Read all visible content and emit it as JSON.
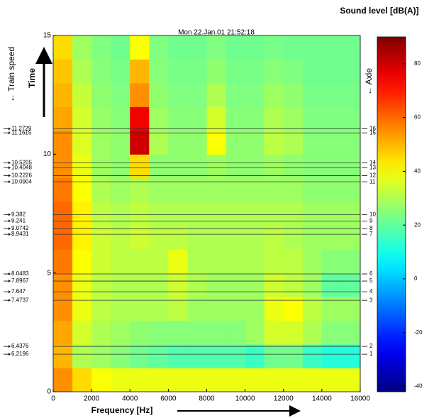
{
  "chart_data": {
    "type": "heatmap",
    "title": "Mon 22.Jan.01  21:52:18",
    "xlabel": "Frequency [Hz]",
    "ylabel": "Time",
    "side_label": "← Train speed",
    "axle_label": "← Axle",
    "colorbar_label": "Sound level [dB(A)]",
    "colormap": "jet",
    "xlim": [
      0,
      16000
    ],
    "xticks": [
      0,
      2000,
      4000,
      6000,
      8000,
      10000,
      12000,
      14000,
      16000
    ],
    "ylim": [
      0,
      15
    ],
    "yticks": [
      0,
      5,
      10,
      15
    ],
    "zlim": [
      -42,
      90
    ],
    "zticks": [
      -40,
      -20,
      0,
      20,
      40,
      60,
      80
    ],
    "x_bins": [
      0,
      1000,
      2000,
      3000,
      4000,
      5000,
      6000,
      7000,
      8000,
      9000,
      10000,
      11000,
      12000,
      13000,
      14000,
      15000,
      16000
    ],
    "y_bins": [
      0,
      1,
      2,
      3,
      4,
      5,
      6,
      7,
      8,
      9,
      10,
      11,
      12,
      13,
      14,
      15
    ],
    "z": [
      [
        55,
        45,
        40,
        38,
        38,
        38,
        38,
        38,
        38,
        38,
        38,
        38,
        38,
        38,
        38,
        38
      ],
      [
        50,
        30,
        28,
        25,
        22,
        20,
        18,
        18,
        18,
        18,
        15,
        22,
        22,
        15,
        12,
        12
      ],
      [
        52,
        35,
        30,
        28,
        26,
        25,
        25,
        25,
        25,
        25,
        28,
        35,
        35,
        30,
        25,
        25
      ],
      [
        55,
        38,
        32,
        30,
        30,
        30,
        32,
        28,
        28,
        28,
        28,
        38,
        40,
        32,
        28,
        28
      ],
      [
        55,
        38,
        32,
        30,
        30,
        30,
        34,
        30,
        28,
        28,
        28,
        34,
        32,
        28,
        20,
        20
      ],
      [
        58,
        40,
        34,
        32,
        32,
        32,
        38,
        30,
        30,
        30,
        30,
        32,
        32,
        28,
        25,
        25
      ],
      [
        60,
        42,
        34,
        32,
        34,
        32,
        32,
        30,
        30,
        30,
        30,
        32,
        30,
        28,
        28,
        28
      ],
      [
        60,
        42,
        32,
        30,
        32,
        30,
        30,
        30,
        30,
        30,
        30,
        30,
        30,
        28,
        28,
        28
      ],
      [
        58,
        40,
        30,
        28,
        30,
        28,
        28,
        28,
        28,
        28,
        28,
        28,
        28,
        26,
        26,
        26
      ],
      [
        55,
        38,
        28,
        26,
        45,
        26,
        26,
        26,
        28,
        26,
        26,
        28,
        26,
        25,
        25,
        25
      ],
      [
        55,
        36,
        28,
        26,
        80,
        30,
        26,
        26,
        40,
        26,
        26,
        32,
        30,
        25,
        25,
        25
      ],
      [
        52,
        35,
        27,
        25,
        75,
        28,
        25,
        25,
        35,
        25,
        25,
        30,
        28,
        24,
        24,
        24
      ],
      [
        50,
        33,
        26,
        24,
        55,
        26,
        24,
        24,
        30,
        24,
        24,
        28,
        26,
        23,
        23,
        23
      ],
      [
        48,
        30,
        25,
        23,
        50,
        25,
        23,
        23,
        26,
        23,
        23,
        25,
        24,
        22,
        22,
        22
      ],
      [
        45,
        28,
        24,
        22,
        40,
        24,
        22,
        22,
        24,
        22,
        22,
        23,
        22,
        22,
        22,
        22
      ]
    ],
    "axles": [
      {
        "axle": 16,
        "time": 11.2729,
        "y": 11.07
      },
      {
        "axle": 15,
        "time": 11.1615,
        "y": 10.9
      },
      {
        "axle": 14,
        "time": 10.5205,
        "y": 9.64
      },
      {
        "axle": 13,
        "time": 10.4048,
        "y": 9.43
      },
      {
        "axle": 12,
        "time": 10.2226,
        "y": 9.1
      },
      {
        "axle": 11,
        "time": 10.0904,
        "y": 8.84
      },
      {
        "axle": 10,
        "time": 9.382,
        "y": 7.46
      },
      {
        "axle": 9,
        "time": 9.241,
        "y": 7.19
      },
      {
        "axle": 8,
        "time": 9.0742,
        "y": 6.87
      },
      {
        "axle": 7,
        "time": 8.9431,
        "y": 6.63
      },
      {
        "axle": 6,
        "time": 8.0483,
        "y": 4.96
      },
      {
        "axle": 5,
        "time": 7.8967,
        "y": 4.66
      },
      {
        "axle": 4,
        "time": 7.647,
        "y": 4.21
      },
      {
        "axle": 3,
        "time": 7.4737,
        "y": 3.85
      },
      {
        "axle": 2,
        "time": 6.4376,
        "y": 1.91
      },
      {
        "axle": 1,
        "time": 6.2196,
        "y": 1.58
      }
    ]
  }
}
